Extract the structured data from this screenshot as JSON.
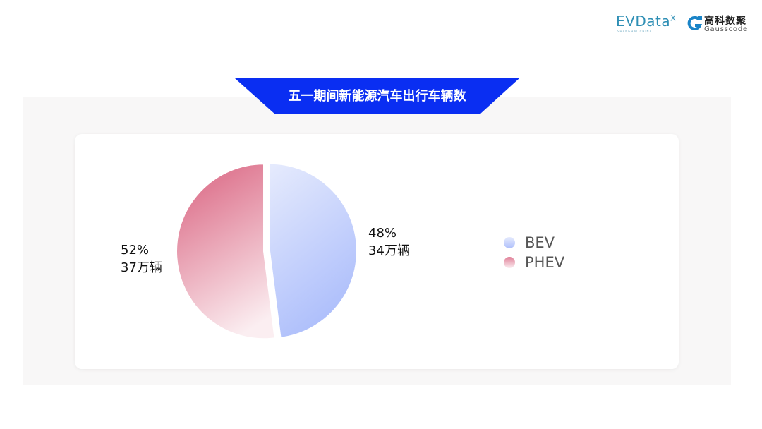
{
  "logos": {
    "evdata": "EVData",
    "evdata_sup": "X",
    "evdata_sub": "SHANGHAI CHINA",
    "gauss_cn": "高科数聚",
    "gauss_en": "Gausscode"
  },
  "chart_data": {
    "type": "pie",
    "title": "五一期间新能源汽车出行车辆数",
    "slices": [
      {
        "name": "BEV",
        "percent": 48,
        "value_label": "34万辆",
        "color": "#b3c4fb"
      },
      {
        "name": "PHEV",
        "percent": 52,
        "value_label": "37万辆",
        "color": "#e07e96"
      }
    ],
    "legend": "right",
    "title_color": "#0a2ef2"
  }
}
